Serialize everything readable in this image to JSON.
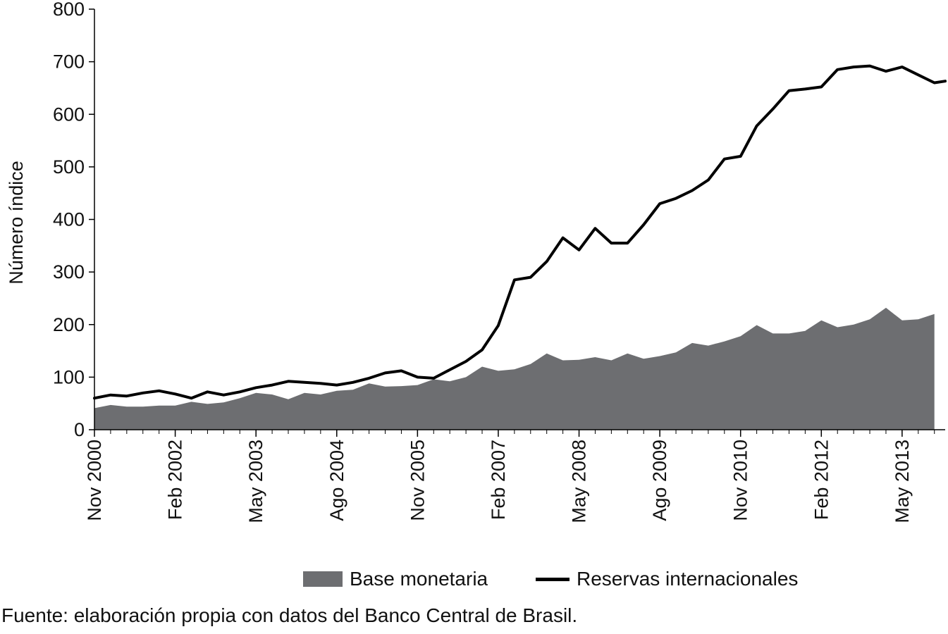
{
  "chart_data": {
    "type": "area",
    "title": "",
    "xlabel": "",
    "ylabel": "Número índice",
    "ylim": [
      0,
      800
    ],
    "yticks": [
      0,
      100,
      200,
      300,
      400,
      500,
      600,
      700,
      800
    ],
    "x_start": "2000-11",
    "x_end": "2014-01",
    "xtick_labels": [
      "Nov 2000",
      "Feb 2002",
      "May 2003",
      "Ago 2004",
      "Nov 2005",
      "Feb 2007",
      "May 2008",
      "Ago 2009",
      "Nov 2010",
      "Feb 2012",
      "May 2013"
    ],
    "grid": false,
    "legend_position": "bottom",
    "source": "Fuente: elaboración propia con datos del Banco Central de Brasil.",
    "series": [
      {
        "name": "Base monetaria",
        "kind": "area",
        "color": "#6d6e71",
        "x": [
          "2000-11",
          "2001-02",
          "2001-05",
          "2001-08",
          "2001-11",
          "2002-02",
          "2002-05",
          "2002-08",
          "2002-11",
          "2003-02",
          "2003-05",
          "2003-08",
          "2003-11",
          "2004-02",
          "2004-05",
          "2004-08",
          "2004-11",
          "2005-02",
          "2005-05",
          "2005-08",
          "2005-11",
          "2006-02",
          "2006-05",
          "2006-08",
          "2006-11",
          "2007-02",
          "2007-05",
          "2007-08",
          "2007-11",
          "2008-02",
          "2008-05",
          "2008-08",
          "2008-11",
          "2009-02",
          "2009-05",
          "2009-08",
          "2009-11",
          "2010-02",
          "2010-05",
          "2010-08",
          "2010-11",
          "2011-02",
          "2011-05",
          "2011-08",
          "2011-11",
          "2012-02",
          "2012-05",
          "2012-08",
          "2012-11",
          "2013-02",
          "2013-05",
          "2013-08",
          "2013-11"
        ],
        "values": [
          41,
          47,
          44,
          44,
          46,
          46,
          53,
          49,
          52,
          60,
          70,
          67,
          58,
          70,
          67,
          74,
          76,
          88,
          82,
          83,
          85,
          96,
          92,
          100,
          120,
          112,
          115,
          125,
          145,
          132,
          133,
          138,
          132,
          145,
          135,
          140,
          147,
          165,
          160,
          168,
          178,
          199,
          183,
          183,
          188,
          208,
          195,
          200,
          210,
          232,
          208,
          210,
          220
        ]
      },
      {
        "name": "Reservas internacionales",
        "kind": "line",
        "color": "#000000",
        "x": [
          "2000-11",
          "2001-02",
          "2001-05",
          "2001-08",
          "2001-11",
          "2002-02",
          "2002-05",
          "2002-08",
          "2002-11",
          "2003-02",
          "2003-05",
          "2003-08",
          "2003-11",
          "2004-02",
          "2004-05",
          "2004-08",
          "2004-11",
          "2005-02",
          "2005-05",
          "2005-08",
          "2005-11",
          "2006-02",
          "2006-05",
          "2006-08",
          "2006-11",
          "2007-02",
          "2007-05",
          "2007-08",
          "2007-11",
          "2008-02",
          "2008-05",
          "2008-08",
          "2008-11",
          "2009-02",
          "2009-05",
          "2009-08",
          "2009-11",
          "2010-02",
          "2010-05",
          "2010-08",
          "2010-11",
          "2011-02",
          "2011-05",
          "2011-08",
          "2011-11",
          "2012-02",
          "2012-05",
          "2012-08",
          "2012-11",
          "2013-02",
          "2013-05",
          "2013-08",
          "2013-11",
          "2014-01"
        ],
        "values": [
          60,
          66,
          64,
          70,
          74,
          68,
          60,
          72,
          66,
          72,
          80,
          85,
          92,
          90,
          88,
          85,
          90,
          98,
          108,
          112,
          100,
          98,
          114,
          130,
          152,
          198,
          285,
          290,
          320,
          365,
          342,
          383,
          355,
          355,
          390,
          430,
          440,
          455,
          475,
          515,
          520,
          578,
          610,
          645,
          648,
          652,
          685,
          690,
          692,
          682,
          690,
          675,
          660,
          663
        ]
      }
    ]
  }
}
